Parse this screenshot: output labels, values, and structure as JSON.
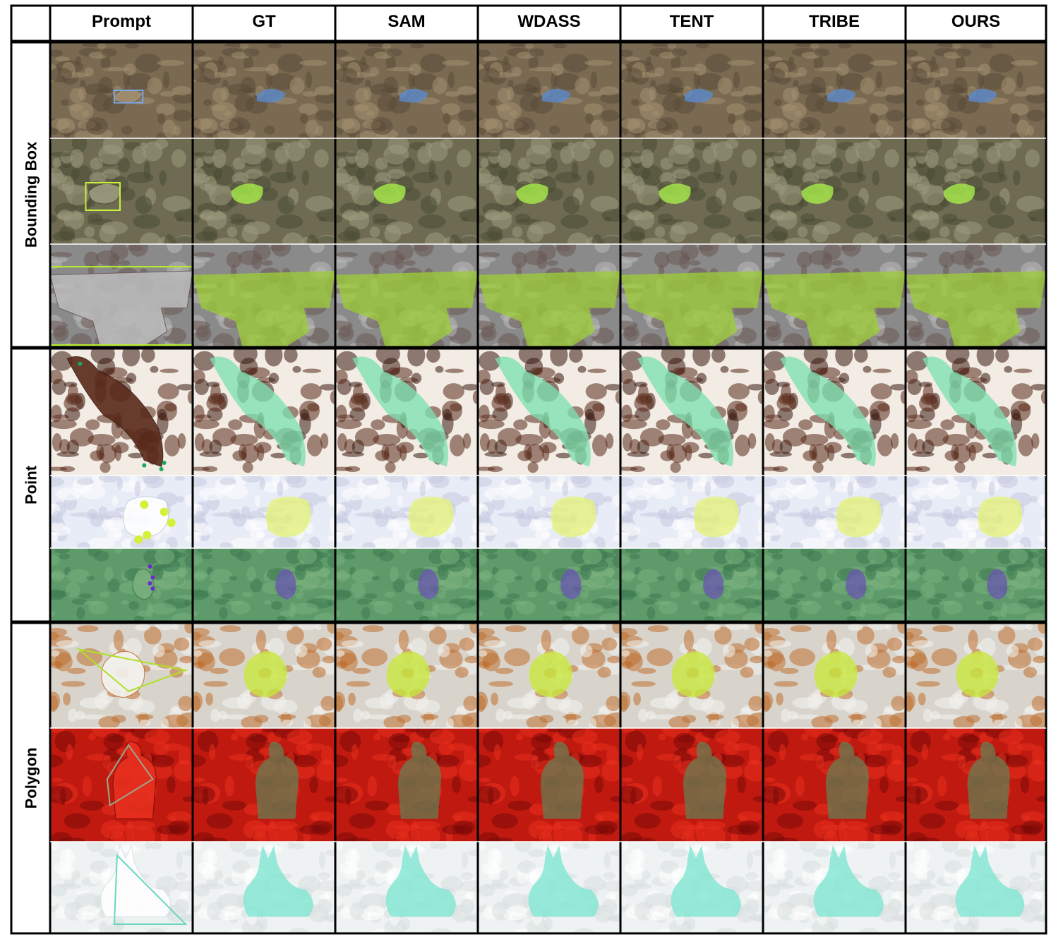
{
  "columns": [
    "Prompt",
    "GT",
    "SAM",
    "WDASS",
    "TENT",
    "TRIBE",
    "OURS"
  ],
  "groups": [
    {
      "label": "Bounding Box",
      "rows": [
        {
          "scene": "leaf-litter",
          "bg": [
            "#7a6a52",
            "#a38f70",
            "#5a4a38"
          ],
          "mask": "#5a8ad0",
          "prompt_color": "#7aa6e6"
        },
        {
          "scene": "tree-bark",
          "bg": [
            "#6e6b52",
            "#9c9a7e",
            "#4a4a34"
          ],
          "mask": "#a9f04a",
          "prompt_color": "#c8f03c"
        },
        {
          "scene": "moth-on-bark",
          "bg": [
            "#8a8a8a",
            "#b9b9b9",
            "#6a5a55"
          ],
          "mask": "#9ccc3a",
          "prompt_color": "#b8f02a"
        }
      ]
    },
    {
      "label": "Point",
      "rows": [
        {
          "scene": "dog-on-cowhide",
          "bg": [
            "#f2ece4",
            "#5a2a1a",
            "#3a1a10"
          ],
          "mask": "#7ee0b0",
          "prompt_color": "#1aa860"
        },
        {
          "scene": "seal-on-snow",
          "bg": [
            "#e8ecf6",
            "#ffffff",
            "#c6cbe0"
          ],
          "mask": "#e6f27a",
          "prompt_color": "#d6f03a"
        },
        {
          "scene": "turtle-in-water",
          "bg": [
            "#5e9a6a",
            "#7ab07e",
            "#3e7a50"
          ],
          "mask": "#6a5ab0",
          "prompt_color": "#6a2ad0"
        }
      ]
    },
    {
      "label": "Polygon",
      "rows": [
        {
          "scene": "spider-on-flower",
          "bg": [
            "#d8d4cc",
            "#f4f2ee",
            "#c07030"
          ],
          "mask": "#c8e83a",
          "prompt_color": "#b0e02a"
        },
        {
          "scene": "person-in-red-seats",
          "bg": [
            "#c01a10",
            "#e8301e",
            "#7a0a08"
          ],
          "mask": "#6a7a50",
          "prompt_color": "#9aa890"
        },
        {
          "scene": "hare-in-snow",
          "bg": [
            "#eef2f2",
            "#ffffff",
            "#d8dede"
          ],
          "mask": "#7ee6d2",
          "prompt_color": "#6ad6c0"
        }
      ]
    }
  ]
}
